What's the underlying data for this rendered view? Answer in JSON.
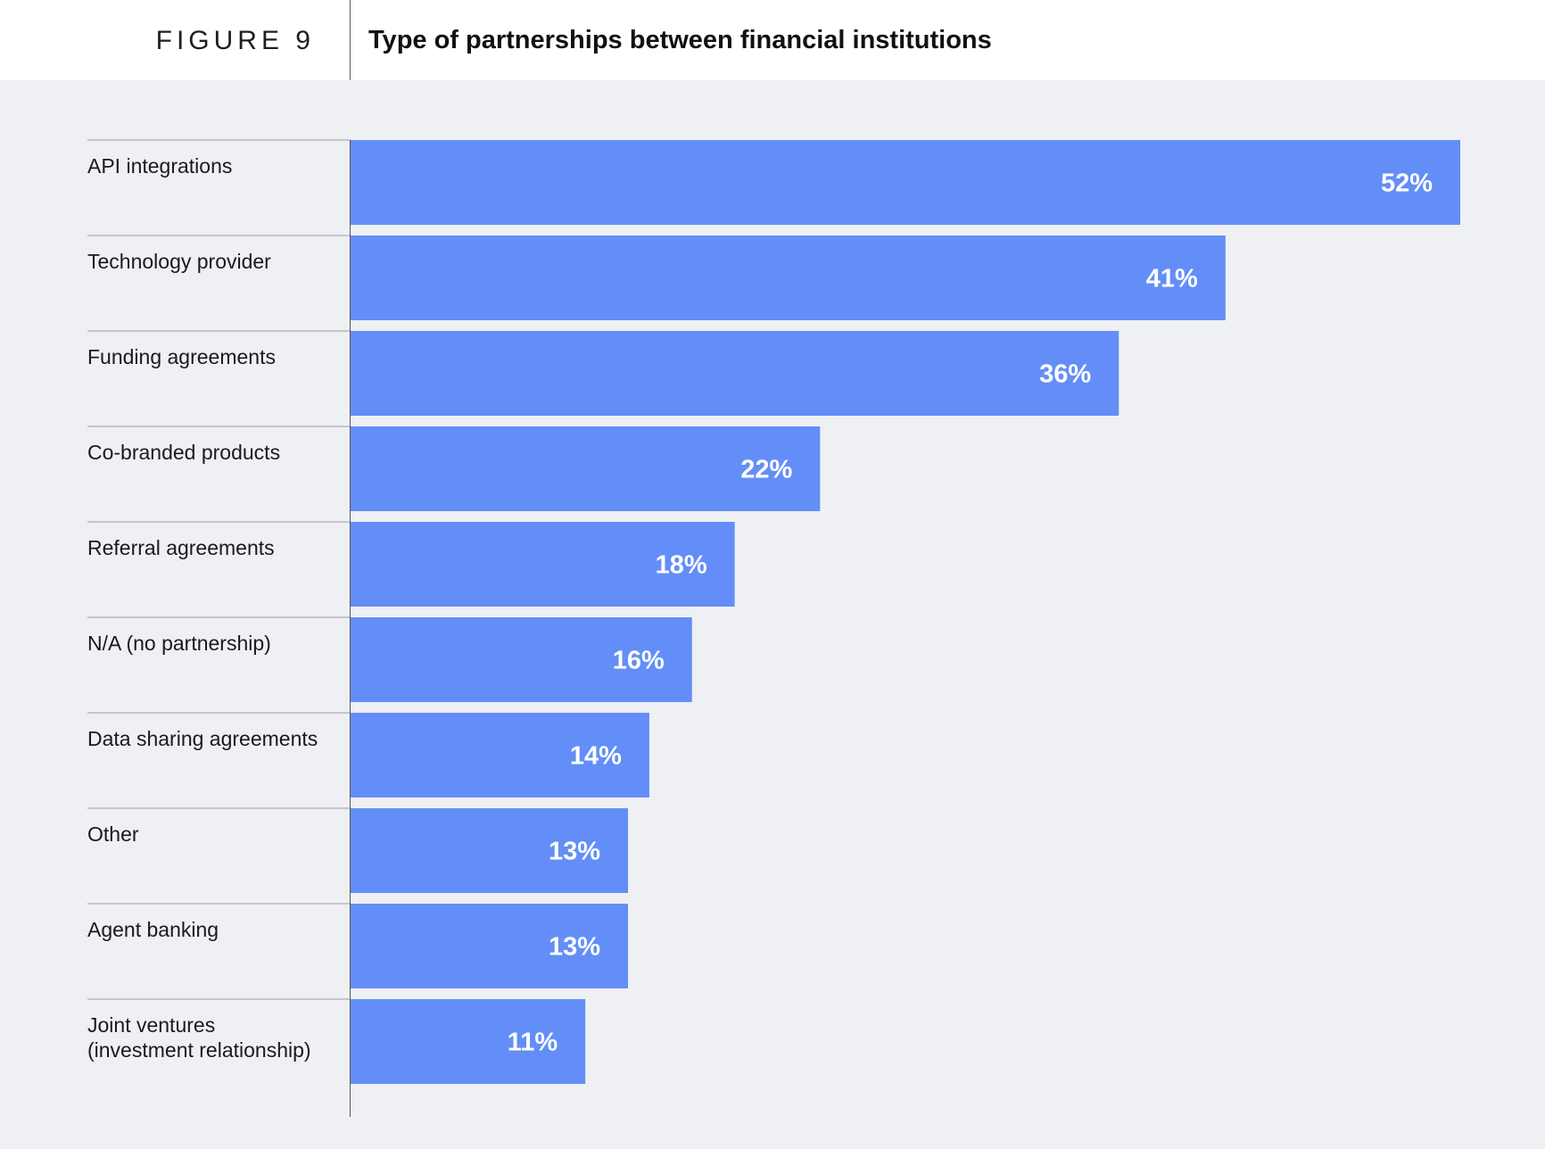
{
  "figure": {
    "label": "FIGURE 9",
    "title": "Type of partnerships between financial institutions"
  },
  "colors": {
    "bar": "#638ef7",
    "panel_background": "#eff0f4",
    "rule": "#9a9da3"
  },
  "chart_data": {
    "type": "bar",
    "orientation": "horizontal",
    "title": "Type of partnerships between financial institutions",
    "categories": [
      [
        "API integrations"
      ],
      [
        "Technology provider"
      ],
      [
        "Funding agreements"
      ],
      [
        "Co-branded products"
      ],
      [
        "Referral agreements"
      ],
      [
        "N/A (no partnership)"
      ],
      [
        "Data sharing agreements"
      ],
      [
        "Other"
      ],
      [
        "Agent banking"
      ],
      [
        "Joint ventures",
        "(investment relationship)"
      ]
    ],
    "values": [
      52,
      41,
      36,
      22,
      18,
      16,
      14,
      13,
      13,
      11
    ],
    "value_labels": [
      "52%",
      "41%",
      "36%",
      "22%",
      "18%",
      "16%",
      "14%",
      "13%",
      "13%",
      "11%"
    ],
    "unit": "%",
    "xlim": [
      0,
      52
    ],
    "grid": false,
    "legend": "none"
  }
}
